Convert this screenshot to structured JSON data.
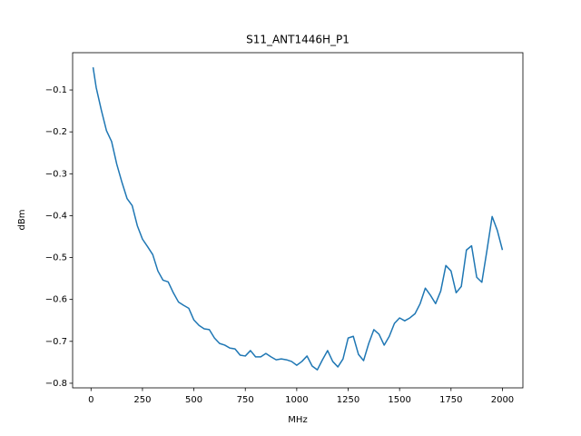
{
  "chart_data": {
    "type": "line",
    "title": "S11_ANT1446H_P1",
    "x_label": "MHz",
    "y_label": "dBm",
    "x": [
      10,
      25,
      50,
      75,
      100,
      125,
      150,
      175,
      200,
      225,
      250,
      275,
      300,
      325,
      350,
      375,
      400,
      425,
      450,
      475,
      500,
      525,
      550,
      575,
      600,
      625,
      650,
      675,
      700,
      725,
      750,
      775,
      800,
      825,
      850,
      875,
      900,
      925,
      950,
      975,
      1000,
      1025,
      1050,
      1075,
      1100,
      1125,
      1150,
      1175,
      1200,
      1225,
      1250,
      1275,
      1300,
      1325,
      1350,
      1375,
      1400,
      1425,
      1450,
      1475,
      1500,
      1525,
      1550,
      1575,
      1600,
      1625,
      1650,
      1675,
      1700,
      1725,
      1750,
      1775,
      1800,
      1825,
      1850,
      1875,
      1900,
      1925,
      1950,
      1975,
      2000
    ],
    "series": [
      {
        "name": "S11",
        "color": "#1f77b4",
        "values": [
          -0.046,
          -0.094,
          -0.148,
          -0.197,
          -0.223,
          -0.277,
          -0.32,
          -0.359,
          -0.376,
          -0.424,
          -0.456,
          -0.474,
          -0.493,
          -0.532,
          -0.554,
          -0.558,
          -0.584,
          -0.606,
          -0.614,
          -0.621,
          -0.649,
          -0.662,
          -0.67,
          -0.672,
          -0.692,
          -0.705,
          -0.709,
          -0.716,
          -0.718,
          -0.733,
          -0.735,
          -0.722,
          -0.737,
          -0.737,
          -0.729,
          -0.737,
          -0.744,
          -0.742,
          -0.744,
          -0.748,
          -0.757,
          -0.748,
          -0.735,
          -0.759,
          -0.768,
          -0.744,
          -0.722,
          -0.748,
          -0.761,
          -0.742,
          -0.692,
          -0.688,
          -0.731,
          -0.746,
          -0.705,
          -0.672,
          -0.683,
          -0.709,
          -0.688,
          -0.657,
          -0.644,
          -0.651,
          -0.644,
          -0.634,
          -0.61,
          -0.573,
          -0.59,
          -0.61,
          -0.58,
          -0.519,
          -0.532,
          -0.584,
          -0.569,
          -0.482,
          -0.472,
          -0.547,
          -0.559,
          -0.482,
          -0.402,
          -0.435,
          -0.482
        ]
      }
    ],
    "xlim": [
      -89.5,
      2099.5
    ],
    "ylim": [
      -0.811,
      -0.011
    ],
    "xticks": [
      0,
      250,
      500,
      750,
      1000,
      1250,
      1500,
      1750,
      2000
    ],
    "yticks": [
      {
        "value": -0.8,
        "label": "−0.8"
      },
      {
        "value": -0.7,
        "label": "−0.7"
      },
      {
        "value": -0.6,
        "label": "−0.6"
      },
      {
        "value": -0.5,
        "label": "−0.5"
      },
      {
        "value": -0.4,
        "label": "−0.4"
      },
      {
        "value": -0.3,
        "label": "−0.3"
      },
      {
        "value": -0.2,
        "label": "−0.2"
      },
      {
        "value": -0.1,
        "label": "−0.1"
      }
    ],
    "grid": false
  }
}
